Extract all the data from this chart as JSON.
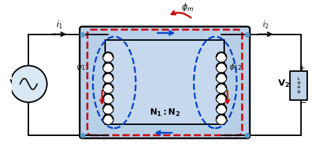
{
  "bg_color": "white",
  "core_outer_color": "#b8cfe8",
  "core_inner_color": "#c5d8ee",
  "wire_color": "black",
  "red_color": "#cc0000",
  "blue_color": "#0044cc",
  "figsize": [
    4.74,
    2.13
  ],
  "dpi": 100,
  "xlim": [
    0,
    10
  ],
  "ylim": [
    0,
    4.5
  ]
}
